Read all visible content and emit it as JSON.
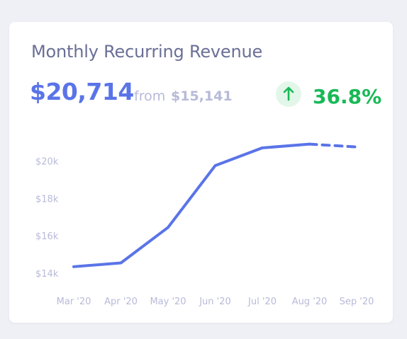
{
  "card": {
    "title": "Monthly Recurring Revenue",
    "current_value": "$20,714",
    "from_label": "from",
    "previous_value": "$15,141",
    "change_percent": "36.8%",
    "change_icon": "arrow-up-icon"
  },
  "colors": {
    "line": "#5a74e8",
    "positive": "#19b956",
    "positive_bg": "#e3f6ea",
    "muted": "#b7bad8"
  },
  "chart_data": {
    "type": "line",
    "categories": [
      "Mar '20",
      "Apr '20",
      "May '20",
      "Jun '20",
      "Jul '20",
      "Aug '20",
      "Sep '20"
    ],
    "y_ticks": [
      {
        "value": 14000,
        "label": "$14k"
      },
      {
        "value": 16000,
        "label": "$16k"
      },
      {
        "value": 18000,
        "label": "$18k"
      },
      {
        "value": 20000,
        "label": "$20k"
      }
    ],
    "ylim": [
      13700,
      21000
    ],
    "grid": false,
    "legend": "none",
    "series": [
      {
        "values": [
          14350,
          14550,
          16450,
          19750,
          20700,
          20900,
          20750
        ],
        "projected_from_index": 5
      }
    ],
    "title": "",
    "xlabel": "",
    "ylabel": ""
  }
}
